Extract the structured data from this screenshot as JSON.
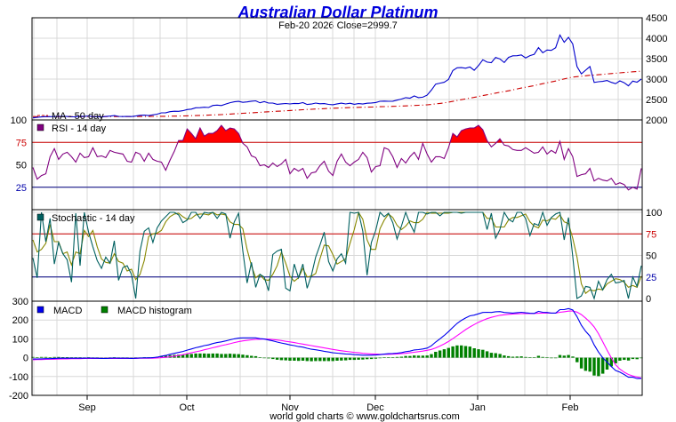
{
  "chart_data": {
    "type": "line",
    "title": "Australian Dollar Platinum",
    "subtitle": "Feb-20  2026   Close=2999.7",
    "footer": "world gold charts © www.goldchartsrus.com",
    "x_labels": [
      "Sep",
      "Oct",
      "Nov",
      "Dec",
      "Jan",
      "Feb"
    ],
    "colors": {
      "price": "#0000cc",
      "ma": "#cc0000",
      "rsi": "#800080",
      "rsi_fill": "#ff0000",
      "stoch_k": "#006060",
      "stoch_d": "#888800",
      "macd": "#0000ee",
      "signal": "#ff00ff",
      "histogram": "#008000",
      "title": "#0000dd",
      "grid": "#d8d8d8",
      "ref_red": "#cc0000",
      "ref_blue": "#000080"
    },
    "panels": [
      {
        "id": "price",
        "legend": [
          "MA - 50 day"
        ],
        "yticks": [
          2000,
          2500,
          3000,
          3500,
          4000,
          4500
        ],
        "ylim": [
          2000,
          4500
        ],
        "price": [
          2050,
          2062,
          2074,
          2081,
          2081,
          2083,
          2086,
          2088,
          2085,
          2077,
          2078,
          2089,
          2084,
          2097,
          2080,
          2082,
          2072,
          2085,
          2093,
          2106,
          2087,
          2083,
          2087,
          2082,
          2096,
          2114,
          2117,
          2106,
          2124,
          2141,
          2175,
          2177,
          2202,
          2212,
          2210,
          2227,
          2255,
          2265,
          2298,
          2300,
          2311,
          2304,
          2354,
          2362,
          2353,
          2389,
          2422,
          2443,
          2454,
          2431,
          2441,
          2459,
          2468,
          2419,
          2450,
          2413,
          2412,
          2382,
          2393,
          2402,
          2391,
          2405,
          2399,
          2425,
          2378,
          2389,
          2414,
          2395,
          2400,
          2380,
          2372,
          2393,
          2410,
          2391,
          2409,
          2383,
          2401,
          2389,
          2408,
          2416,
          2427,
          2456,
          2460,
          2456,
          2458,
          2484,
          2510,
          2545,
          2532,
          2587,
          2546,
          2556,
          2606,
          2731,
          2876,
          2900,
          2922,
          2991,
          3209,
          3276,
          3280,
          3265,
          3296,
          3215,
          3331,
          3472,
          3416,
          3402,
          3531,
          3493,
          3405,
          3530,
          3569,
          3571,
          3592,
          3518,
          3574,
          3606,
          3769,
          3643,
          3710,
          3703,
          3768,
          4078,
          3901,
          4022,
          3859,
          3306,
          3127,
          3218,
          3307,
          2918,
          2935,
          2944,
          2965,
          2919,
          2886,
          2957,
          2910,
          2834,
          2950,
          2925,
          3000
        ],
        "ma": [
          2082,
          2081,
          2080,
          2080,
          2080,
          2080,
          2080,
          2080,
          2081,
          2081,
          2081,
          2081,
          2082,
          2082,
          2082,
          2082,
          2082,
          2082,
          2083,
          2083,
          2083,
          2083,
          2083,
          2083,
          2084,
          2084,
          2085,
          2085,
          2086,
          2087,
          2089,
          2090,
          2092,
          2094,
          2096,
          2098,
          2101,
          2104,
          2107,
          2110,
          2114,
          2118,
          2123,
          2127,
          2131,
          2137,
          2143,
          2149,
          2155,
          2162,
          2168,
          2174,
          2181,
          2187,
          2194,
          2200,
          2206,
          2212,
          2218,
          2225,
          2231,
          2237,
          2243,
          2250,
          2256,
          2261,
          2267,
          2272,
          2277,
          2282,
          2286,
          2290,
          2294,
          2298,
          2302,
          2305,
          2308,
          2311,
          2314,
          2316,
          2320,
          2323,
          2326,
          2329,
          2332,
          2335,
          2339,
          2343,
          2348,
          2354,
          2358,
          2363,
          2370,
          2380,
          2393,
          2405,
          2418,
          2434,
          2455,
          2476,
          2496,
          2515,
          2535,
          2552,
          2573,
          2595,
          2615,
          2634,
          2656,
          2676,
          2693,
          2714,
          2735,
          2758,
          2780,
          2799,
          2820,
          2840,
          2865,
          2886,
          2909,
          2930,
          2952,
          2981,
          3004,
          3029,
          3049,
          3059,
          3069,
          3081,
          3094,
          3097,
          3106,
          3116,
          3126,
          3135,
          3144,
          3153,
          3161,
          3167,
          3178,
          3184,
          3194
        ]
      },
      {
        "id": "rsi",
        "legend": [
          "RSI - 14 day"
        ],
        "yticks": [
          25,
          50,
          75,
          100
        ],
        "ylim": [
          0,
          100
        ],
        "reference_lines": [
          75,
          25
        ],
        "rsi": [
          47,
          34,
          38,
          40,
          59,
          68,
          56,
          62,
          64,
          59,
          53,
          63,
          58,
          59,
          69,
          59,
          60,
          58,
          66,
          64,
          63,
          62,
          54,
          53,
          64,
          62,
          54,
          63,
          56,
          54,
          53,
          44,
          55,
          65,
          77,
          77,
          90,
          85,
          79,
          91,
          82,
          85,
          85,
          88,
          94,
          88,
          91,
          90,
          85,
          74,
          70,
          60,
          58,
          49,
          50,
          47,
          52,
          48,
          51,
          56,
          40,
          46,
          43,
          46,
          35,
          41,
          42,
          49,
          54,
          43,
          38,
          54,
          62,
          53,
          49,
          53,
          56,
          64,
          58,
          42,
          48,
          49,
          69,
          67,
          59,
          47,
          57,
          52,
          59,
          64,
          56,
          74,
          62,
          53,
          59,
          59,
          57,
          69,
          85,
          81,
          88,
          90,
          91,
          91,
          94,
          89,
          77,
          70,
          74,
          79,
          72,
          71,
          67,
          66,
          66,
          69,
          66,
          63,
          64,
          70,
          62,
          66,
          63,
          76,
          56,
          68,
          59,
          37,
          39,
          40,
          46,
          32,
          35,
          33,
          32,
          35,
          28,
          30,
          28,
          22,
          25,
          23,
          46
        ],
        "rsi_overbought_note": "fill above 75"
      },
      {
        "id": "stochastic",
        "legend": [
          "Stochastic - 14 day"
        ],
        "yticks": [
          0,
          25,
          50,
          75,
          100
        ],
        "ylim": [
          0,
          100
        ],
        "reference_lines": [
          75,
          25
        ],
        "k": [
          47,
          24,
          100,
          66,
          93,
          40,
          65,
          52,
          45,
          19,
          99,
          38,
          100,
          77,
          60,
          44,
          35,
          48,
          41,
          67,
          21,
          36,
          38,
          28,
          0,
          55,
          78,
          82,
          65,
          82,
          90,
          95,
          100,
          100,
          97,
          88,
          91,
          100,
          100,
          93,
          100,
          99,
          100,
          93,
          100,
          98,
          70,
          89,
          99,
          55,
          18,
          42,
          13,
          28,
          25,
          9,
          51,
          55,
          57,
          12,
          9,
          40,
          24,
          40,
          12,
          27,
          48,
          62,
          77,
          43,
          32,
          46,
          52,
          41,
          100,
          99,
          100,
          78,
          27,
          65,
          79,
          100,
          95,
          99,
          88,
          69,
          84,
          100,
          87,
          77,
          100,
          100,
          98,
          100,
          100,
          96,
          100,
          100,
          100,
          100,
          99,
          100,
          100,
          100,
          100,
          100,
          80,
          99,
          70,
          80,
          100,
          92,
          89,
          100,
          100,
          93,
          73,
          87,
          85,
          100,
          85,
          94,
          98,
          100,
          68,
          94,
          49,
          0,
          3,
          14,
          13,
          0,
          20,
          10,
          22,
          28,
          18,
          19,
          21,
          0,
          25,
          14,
          38
        ],
        "d": [
          68,
          54,
          57,
          64,
          86,
          66,
          66,
          52,
          54,
          39,
          54,
          52,
          79,
          72,
          79,
          60,
          46,
          42,
          41,
          52,
          43,
          41,
          32,
          34,
          22,
          28,
          44,
          72,
          75,
          76,
          79,
          89,
          95,
          98,
          99,
          95,
          92,
          93,
          97,
          98,
          98,
          97,
          100,
          97,
          98,
          97,
          89,
          86,
          86,
          81,
          57,
          38,
          24,
          28,
          22,
          21,
          28,
          38,
          54,
          41,
          26,
          20,
          24,
          35,
          25,
          26,
          29,
          46,
          62,
          61,
          51,
          40,
          43,
          46,
          64,
          80,
          100,
          92,
          68,
          57,
          57,
          81,
          91,
          98,
          94,
          85,
          80,
          84,
          90,
          88,
          88,
          92,
          100,
          99,
          99,
          99,
          99,
          99,
          100,
          100,
          100,
          100,
          100,
          100,
          100,
          100,
          93,
          93,
          83,
          83,
          83,
          91,
          94,
          94,
          96,
          98,
          89,
          84,
          82,
          91,
          90,
          93,
          92,
          97,
          89,
          87,
          70,
          48,
          17,
          6,
          10,
          9,
          11,
          10,
          17,
          20,
          23,
          22,
          19,
          13,
          15,
          13,
          26
        ]
      },
      {
        "id": "macd",
        "legend": [
          "MACD",
          "MACD histogram"
        ],
        "yticks": [
          -200,
          -100,
          0,
          100,
          200,
          300
        ],
        "ylim": [
          -200,
          300
        ],
        "macd": [
          -7,
          -7,
          -6,
          -5,
          -5,
          -4,
          -3,
          -3,
          -3,
          -3,
          -3,
          -3,
          -3,
          -2,
          -3,
          -3,
          -4,
          -4,
          -3,
          -2,
          -3,
          -3,
          -3,
          -4,
          -3,
          -2,
          -1,
          -1,
          0,
          3,
          8,
          12,
          18,
          23,
          28,
          33,
          40,
          46,
          53,
          58,
          64,
          68,
          75,
          80,
          84,
          89,
          95,
          100,
          104,
          105,
          105,
          105,
          105,
          101,
          99,
          94,
          89,
          83,
          78,
          73,
          68,
          64,
          59,
          56,
          50,
          45,
          42,
          38,
          34,
          30,
          26,
          24,
          22,
          20,
          19,
          16,
          15,
          13,
          13,
          13,
          14,
          16,
          19,
          21,
          22,
          24,
          27,
          32,
          35,
          41,
          43,
          46,
          51,
          63,
          83,
          100,
          118,
          138,
          161,
          182,
          198,
          211,
          222,
          226,
          233,
          240,
          241,
          240,
          244,
          245,
          240,
          238,
          237,
          239,
          241,
          238,
          236,
          235,
          246,
          241,
          240,
          237,
          237,
          255,
          255,
          261,
          254,
          218,
          172,
          140,
          115,
          68,
          30,
          0,
          -23,
          -47,
          -68,
          -77,
          -89,
          -104,
          -104,
          -111,
          -110
        ],
        "signal": [
          -11,
          -10,
          -10,
          -9,
          -8,
          -8,
          -7,
          -6,
          -6,
          -5,
          -5,
          -5,
          -4,
          -4,
          -4,
          -4,
          -4,
          -4,
          -4,
          -4,
          -4,
          -4,
          -4,
          -4,
          -4,
          -3,
          -3,
          -3,
          -3,
          -2,
          0,
          2,
          5,
          8,
          12,
          16,
          21,
          26,
          31,
          36,
          42,
          47,
          53,
          58,
          64,
          69,
          74,
          80,
          85,
          89,
          92,
          95,
          97,
          98,
          99,
          98,
          96,
          94,
          91,
          87,
          84,
          80,
          76,
          72,
          68,
          64,
          60,
          56,
          52,
          48,
          44,
          40,
          37,
          34,
          31,
          28,
          26,
          23,
          21,
          20,
          19,
          18,
          18,
          18,
          19,
          20,
          22,
          23,
          26,
          29,
          32,
          35,
          39,
          44,
          52,
          62,
          73,
          86,
          101,
          117,
          133,
          149,
          163,
          176,
          188,
          198,
          207,
          214,
          220,
          225,
          228,
          230,
          232,
          233,
          234,
          234,
          234,
          235,
          236,
          237,
          237,
          237,
          237,
          241,
          244,
          247,
          248,
          242,
          229,
          210,
          189,
          163,
          128,
          85,
          40,
          -1,
          -38,
          -61,
          -77,
          -89,
          -97,
          -103,
          -108
        ],
        "histogram": [
          4,
          3,
          4,
          4,
          3,
          4,
          4,
          3,
          3,
          2,
          2,
          2,
          1,
          2,
          1,
          1,
          0,
          0,
          1,
          2,
          1,
          1,
          1,
          0,
          1,
          1,
          2,
          2,
          3,
          5,
          8,
          10,
          13,
          15,
          16,
          17,
          19,
          20,
          22,
          22,
          22,
          21,
          22,
          22,
          20,
          20,
          21,
          20,
          19,
          16,
          13,
          10,
          8,
          3,
          0,
          -4,
          -7,
          -11,
          -13,
          -14,
          -16,
          -16,
          -17,
          -16,
          -18,
          -19,
          -18,
          -18,
          -18,
          -18,
          -18,
          -16,
          -15,
          -14,
          -12,
          -12,
          -11,
          -10,
          -8,
          -7,
          -5,
          -2,
          1,
          3,
          3,
          4,
          5,
          9,
          9,
          12,
          11,
          11,
          12,
          19,
          31,
          38,
          45,
          52,
          60,
          65,
          65,
          62,
          59,
          50,
          45,
          42,
          34,
          26,
          24,
          20,
          12,
          8,
          5,
          6,
          7,
          4,
          2,
          1,
          10,
          4,
          3,
          0,
          0,
          14,
          11,
          14,
          6,
          -24,
          -57,
          -70,
          -74,
          -95,
          -98,
          -85,
          -63,
          -46,
          -30,
          -16,
          -12,
          -15,
          -7,
          -8,
          -2
        ]
      }
    ]
  }
}
